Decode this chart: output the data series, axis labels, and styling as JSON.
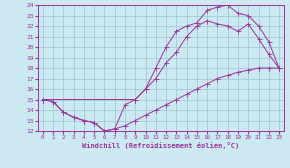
{
  "xlabel": "Windchill (Refroidissement éolien,°C)",
  "bg_color": "#cce8f0",
  "grid_color": "#a0ccd8",
  "line_color": "#993399",
  "xlim": [
    -0.5,
    23.5
  ],
  "ylim": [
    12,
    24
  ],
  "xticks": [
    0,
    1,
    2,
    3,
    4,
    5,
    6,
    7,
    8,
    9,
    10,
    11,
    12,
    13,
    14,
    15,
    16,
    17,
    18,
    19,
    20,
    21,
    22,
    23
  ],
  "yticks": [
    12,
    13,
    14,
    15,
    16,
    17,
    18,
    19,
    20,
    21,
    22,
    23,
    24
  ],
  "line1_x": [
    0,
    1,
    2,
    3,
    4,
    5,
    6,
    7,
    8,
    9,
    10,
    11,
    12,
    13,
    14,
    15,
    16,
    17,
    18,
    19,
    20,
    21,
    22,
    23
  ],
  "line1_y": [
    15.0,
    14.8,
    13.8,
    13.3,
    13.0,
    12.8,
    12.0,
    12.2,
    12.5,
    13.0,
    13.5,
    14.0,
    14.5,
    15.0,
    15.5,
    16.0,
    16.5,
    17.0,
    17.3,
    17.6,
    17.8,
    18.0,
    18.0,
    18.0
  ],
  "line2_x": [
    0,
    1,
    2,
    3,
    4,
    5,
    6,
    7,
    8,
    9,
    10,
    11,
    12,
    13,
    14,
    15,
    16,
    17,
    18,
    19,
    20,
    21,
    22,
    23
  ],
  "line2_y": [
    15.0,
    14.8,
    13.8,
    13.3,
    13.0,
    12.8,
    12.0,
    12.2,
    14.5,
    15.0,
    16.0,
    17.0,
    18.5,
    19.5,
    21.0,
    22.0,
    22.5,
    22.2,
    22.0,
    21.5,
    22.2,
    20.8,
    19.3,
    18.0
  ],
  "line3_x": [
    0,
    9,
    10,
    11,
    12,
    13,
    14,
    15,
    16,
    17,
    18,
    19,
    20,
    21,
    22,
    23
  ],
  "line3_y": [
    15.0,
    15.0,
    16.0,
    18.0,
    20.0,
    21.5,
    22.0,
    22.3,
    23.5,
    23.8,
    24.0,
    23.2,
    23.0,
    22.0,
    20.5,
    18.0
  ]
}
